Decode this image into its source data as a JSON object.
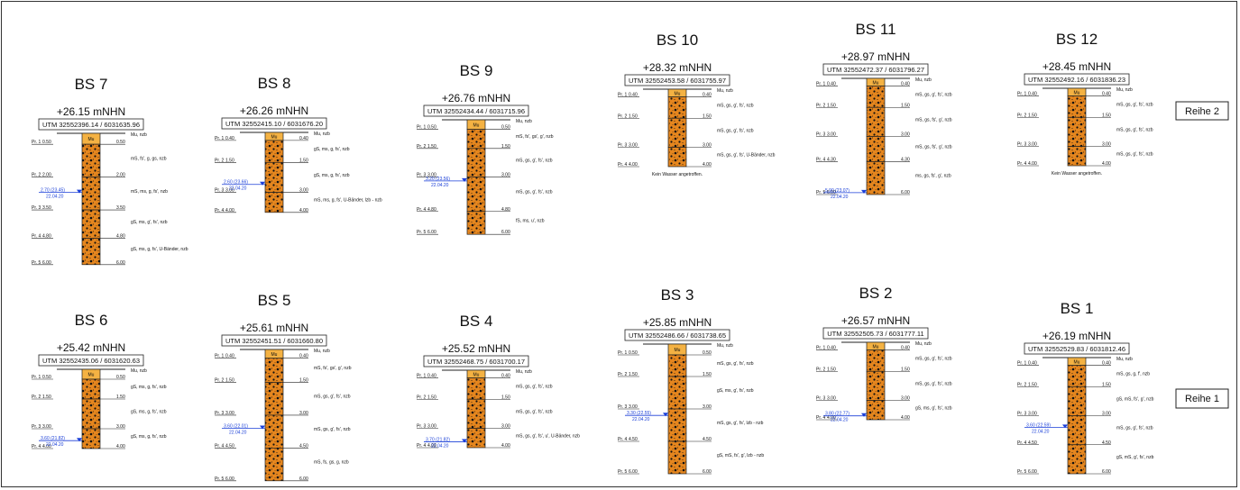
{
  "reihen": [
    "Reihe 2",
    "Reihe 1"
  ],
  "colors": {
    "soil": "#e5861e",
    "mutterboden": "#f4b243",
    "water": "#1a3fd8",
    "line": "#222222"
  },
  "boreholes": [
    {
      "name": "BS 7",
      "elev": "+26.15 mNHN",
      "utm": "UTM 32552396.14 / 6031635.96",
      "samples": [
        [
          "Pr. 1",
          "0.50"
        ],
        [
          "Pr. 2",
          "2.00"
        ],
        [
          "Pr. 3",
          "3.50"
        ],
        [
          "Pr. 4",
          "4.80"
        ],
        [
          "Pr. 5",
          "6.00"
        ]
      ],
      "layers": [
        [
          "0.50",
          "Mu, nzb"
        ],
        [
          "2.00",
          "mS, fs', g, gs, nzb"
        ],
        [
          "3.50",
          "mS, ms, g, fs', nzb"
        ],
        [
          "4.80",
          "gS, ms, g', fs', nzb"
        ],
        [
          "6.00",
          "gS, ms, g, fs', U-Bänder, nzb"
        ]
      ],
      "water": [
        "2.70 (23.45)",
        "22.04.20"
      ],
      "note": ""
    },
    {
      "name": "BS 8",
      "elev": "+26.26 mNHN",
      "utm": "UTM 32552415.10 / 6031676.20",
      "samples": [
        [
          "Pr. 1",
          "0.40"
        ],
        [
          "Pr. 2",
          "1.50"
        ],
        [
          "Pr. 3",
          "3.00"
        ],
        [
          "Pr. 4",
          "4.00"
        ]
      ],
      "layers": [
        [
          "0.40",
          "Mu, nzb"
        ],
        [
          "1.50",
          "gS, ms, g, fs', nzb"
        ],
        [
          "3.00",
          "gS, ms, g, fs', nzb"
        ],
        [
          "4.00",
          "mS, ms, g, fs', U-Bänder, lzb - nzb"
        ]
      ],
      "water": [
        "2.60 (23.66)",
        "22.04.20"
      ],
      "note": ""
    },
    {
      "name": "BS 9",
      "elev": "+26.76 mNHN",
      "utm": "UTM 32552434.44 / 6031715.96",
      "samples": [
        [
          "Pr. 1",
          "0.50"
        ],
        [
          "Pr. 2",
          "1.50"
        ],
        [
          "Pr. 3",
          "3.00"
        ],
        [
          "Pr. 4",
          "4.80"
        ],
        [
          "Pr. 5",
          "6.00"
        ]
      ],
      "layers": [
        [
          "0.50",
          "Mu, nzb"
        ],
        [
          "1.50",
          "mS, fs', gs', g', nzb"
        ],
        [
          "3.00",
          "mS, gs, g', fs', nzb"
        ],
        [
          "4.80",
          "mS, gs, g', fs', nzb"
        ],
        [
          "6.00",
          "fS, ms, u', nzb"
        ]
      ],
      "water": [
        "3.20 (23.56)",
        "22.04.20"
      ],
      "note": ""
    },
    {
      "name": "BS 10",
      "elev": "+28.32 mNHN",
      "utm": "UTM 32552453.58 / 6031755.97",
      "samples": [
        [
          "Pr. 1",
          "0.40"
        ],
        [
          "Pr. 2",
          "1.50"
        ],
        [
          "Pr. 3",
          "3.00"
        ],
        [
          "Pr. 4",
          "4.00"
        ]
      ],
      "layers": [
        [
          "0.40",
          "Mu, nzb"
        ],
        [
          "1.50",
          "mS, gs, g', fs', nzb"
        ],
        [
          "3.00",
          "mS, gs, g', fs', nzb"
        ],
        [
          "4.00",
          "mS, gs, g', fs', U-Bänder, nzb"
        ]
      ],
      "water": null,
      "note": "Kein Wasser angetroffen."
    },
    {
      "name": "BS 11",
      "elev": "+28.97 mNHN",
      "utm": "UTM 32552472.37 / 6031796.27",
      "samples": [
        [
          "Pr. 1",
          "0.40"
        ],
        [
          "Pr. 2",
          "1.50"
        ],
        [
          "Pr. 3",
          "3.00"
        ],
        [
          "Pr. 4",
          "4.30"
        ],
        [
          "Pr. 5",
          "6.00"
        ]
      ],
      "layers": [
        [
          "0.40",
          "Mu, nzb"
        ],
        [
          "1.50",
          "mS, gs, g', fs', nzb"
        ],
        [
          "3.00",
          "mS, gs, fs', g', nzb"
        ],
        [
          "4.30",
          "mS, gs, fs', g', nzb"
        ],
        [
          "6.00",
          "ms, gs, fs', g', nzb"
        ]
      ],
      "water": [
        "5.90 (23.07)",
        "22.04.20"
      ],
      "note": ""
    },
    {
      "name": "BS 12",
      "elev": "+28.45 mNHN",
      "utm": "UTM 32552492.16 / 6031836.23",
      "samples": [
        [
          "Pr. 1",
          "0.40"
        ],
        [
          "Pr. 2",
          "1.50"
        ],
        [
          "Pr. 3",
          "3.00"
        ],
        [
          "Pr. 4",
          "4.00"
        ]
      ],
      "layers": [
        [
          "0.40",
          "Mu, nzb"
        ],
        [
          "1.50",
          "mS, gs, g', fs', nzb"
        ],
        [
          "3.00",
          "mS, gs, g', fs', nzb"
        ],
        [
          "4.00",
          "mS, gs, g', fs', nzb"
        ]
      ],
      "water": null,
      "note": "Kein Wasser angetroffen."
    },
    {
      "name": "BS 6",
      "elev": "+25.42 mNHN",
      "utm": "UTM 32552435.06 / 6031620.63",
      "samples": [
        [
          "Pr. 1",
          "0.50"
        ],
        [
          "Pr. 2",
          "1.50"
        ],
        [
          "Pr. 3",
          "3.00"
        ],
        [
          "Pr. 4",
          "4.00"
        ]
      ],
      "layers": [
        [
          "0.50",
          "Mu, nzb"
        ],
        [
          "1.50",
          "gS, ms, g, fs', nzb"
        ],
        [
          "3.00",
          "gS, ms, g, fs', nzb"
        ],
        [
          "4.00",
          "gS, ms, g, fs', nzb"
        ]
      ],
      "water": [
        "3.60 (21.82)",
        "22.04.20"
      ],
      "note": ""
    },
    {
      "name": "BS 5",
      "elev": "+25.61 mNHN",
      "utm": "UTM 32552451.51 / 6031660.80",
      "samples": [
        [
          "Pr. 1",
          "0.40"
        ],
        [
          "Pr. 2",
          "1.50"
        ],
        [
          "Pr. 3",
          "3.00"
        ],
        [
          "Pr. 4",
          "4.50"
        ],
        [
          "Pr. 5",
          "6.00"
        ]
      ],
      "layers": [
        [
          "0.40",
          "Mu, nzb"
        ],
        [
          "1.50",
          "mS, fs', gs', g', nzb"
        ],
        [
          "3.00",
          "mS, gs, g', fs', nzb"
        ],
        [
          "4.50",
          "mS, gs, g', fs', nzb"
        ],
        [
          "6.00",
          "mS, fs, gs, g, nzb"
        ]
      ],
      "water": [
        "3.60 (22.01)",
        "22.04.20"
      ],
      "note": ""
    },
    {
      "name": "BS 4",
      "elev": "+25.52 mNHN",
      "utm": "UTM 32552468.75 / 6031700.17",
      "samples": [
        [
          "Pr. 1",
          "0.40"
        ],
        [
          "Pr. 2",
          "1.50"
        ],
        [
          "Pr. 3",
          "3.00"
        ],
        [
          "Pr. 4",
          "4.00"
        ]
      ],
      "layers": [
        [
          "0.40",
          "Mu, nzb"
        ],
        [
          "1.50",
          "mS, gs, g', fs', nzb"
        ],
        [
          "3.00",
          "mS, gs, g', fs', nzb"
        ],
        [
          "4.00",
          "mS, gs, g', fs', u', U-Bänder, nzb"
        ]
      ],
      "water": [
        "3.70 (21.82)",
        "22.04.20"
      ],
      "note": ""
    },
    {
      "name": "BS 3",
      "elev": "+25.85 mNHN",
      "utm": "UTM 32552486.66 / 6031738.65",
      "samples": [
        [
          "Pr. 1",
          "0.50"
        ],
        [
          "Pr. 2",
          "1.50"
        ],
        [
          "Pr. 3",
          "3.00"
        ],
        [
          "Pr. 4",
          "4.50"
        ],
        [
          "Pr. 5",
          "6.00"
        ]
      ],
      "layers": [
        [
          "0.50",
          "Mu, nzb"
        ],
        [
          "1.50",
          "mS, gs, g', fs', nzb"
        ],
        [
          "3.00",
          "gS, ms, g', fs', nzb"
        ],
        [
          "4.50",
          "mS, gs, g', fs', lzb - nzb"
        ],
        [
          "6.00",
          "gS, mS, fs', g', lzb - nzb"
        ]
      ],
      "water": [
        "3.30 (22.55)",
        "22.04.20"
      ],
      "note": ""
    },
    {
      "name": "BS 2",
      "elev": "+26.57 mNHN",
      "utm": "UTM 32552505.73 / 6031777.11",
      "samples": [
        [
          "Pr. 1",
          "0.40"
        ],
        [
          "Pr. 2",
          "1.50"
        ],
        [
          "Pr. 3",
          "3.00"
        ],
        [
          "Pr. 4",
          "4.00"
        ]
      ],
      "layers": [
        [
          "0.40",
          "Mu, nzb"
        ],
        [
          "1.50",
          "mS, gs, g', fs', nzb"
        ],
        [
          "3.00",
          "mS, gs, g', fs', nzb"
        ],
        [
          "4.00",
          "gS, ms, g', fs', nzb"
        ]
      ],
      "water": [
        "3.80 (22.77)",
        "22.04.20"
      ],
      "note": ""
    },
    {
      "name": "BS 1",
      "elev": "+26.19 mNHN",
      "utm": "UTM 32552529.83 / 6031812.46",
      "samples": [
        [
          "Pr. 1",
          "0.40"
        ],
        [
          "Pr. 2",
          "1.50"
        ],
        [
          "Pr. 3",
          "3.00"
        ],
        [
          "Pr. 4",
          "4.50"
        ],
        [
          "Pr. 5",
          "6.00"
        ]
      ],
      "layers": [
        [
          "0.40",
          "Mu, nzb"
        ],
        [
          "1.50",
          "mS, gs, g, f', nzb"
        ],
        [
          "3.00",
          "gS, mS, fs', g', nzb"
        ],
        [
          "4.50",
          "mS, gs, g', fs', nzb"
        ],
        [
          "6.00",
          "gS, mS, g', fs', nzb"
        ]
      ],
      "water": [
        "3.60 (22.59)",
        "22.04.20"
      ],
      "note": ""
    }
  ]
}
